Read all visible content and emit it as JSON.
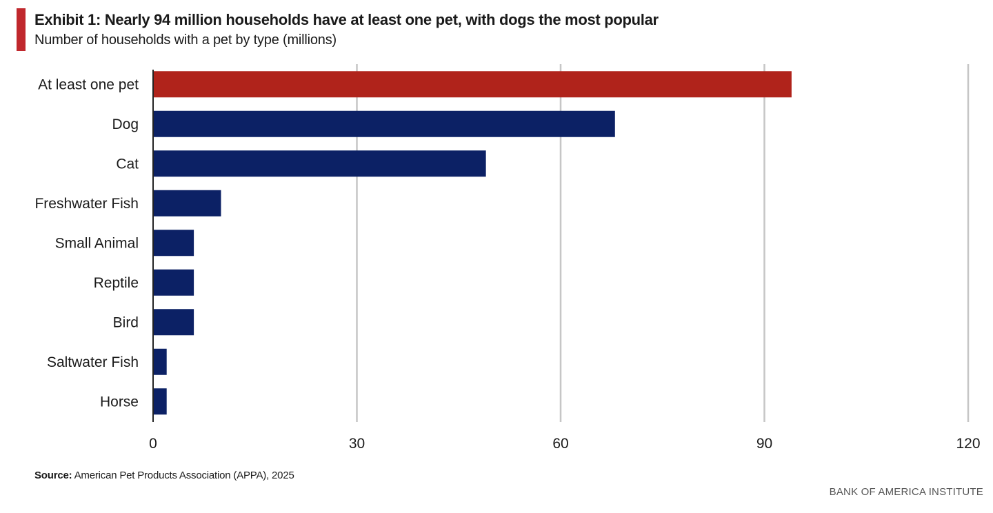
{
  "header": {
    "title": "Exhibit 1: Nearly 94 million households have at least one pet, with dogs the most popular",
    "subtitle": "Number of households with a pet by type (millions)"
  },
  "footer": {
    "source_label": "Source:",
    "source_text": " American Pet Products Association (APPA), 2025",
    "brand": "BANK OF AMERICA INSTITUTE"
  },
  "colors": {
    "accent": "#c0282d",
    "highlight_bar": "#b0231b",
    "bar": "#0c2165",
    "grid": "#c6c6c6",
    "axis": "#222222"
  },
  "chart_data": {
    "type": "bar",
    "orientation": "horizontal",
    "title": "Exhibit 1: Nearly 94 million households have at least one pet, with dogs the most popular",
    "subtitle": "Number of households with a pet by type (millions)",
    "xlabel": "",
    "ylabel": "",
    "xlim": [
      0,
      120
    ],
    "xticks": [
      0,
      30,
      60,
      90,
      120
    ],
    "grid": true,
    "categories": [
      "At least one pet",
      "Dog",
      "Cat",
      "Freshwater Fish",
      "Small Animal",
      "Reptile",
      "Bird",
      "Saltwater Fish",
      "Horse"
    ],
    "values": [
      94,
      68,
      49,
      10,
      6,
      6,
      6,
      2,
      2
    ],
    "highlight": [
      "At least one pet"
    ]
  }
}
